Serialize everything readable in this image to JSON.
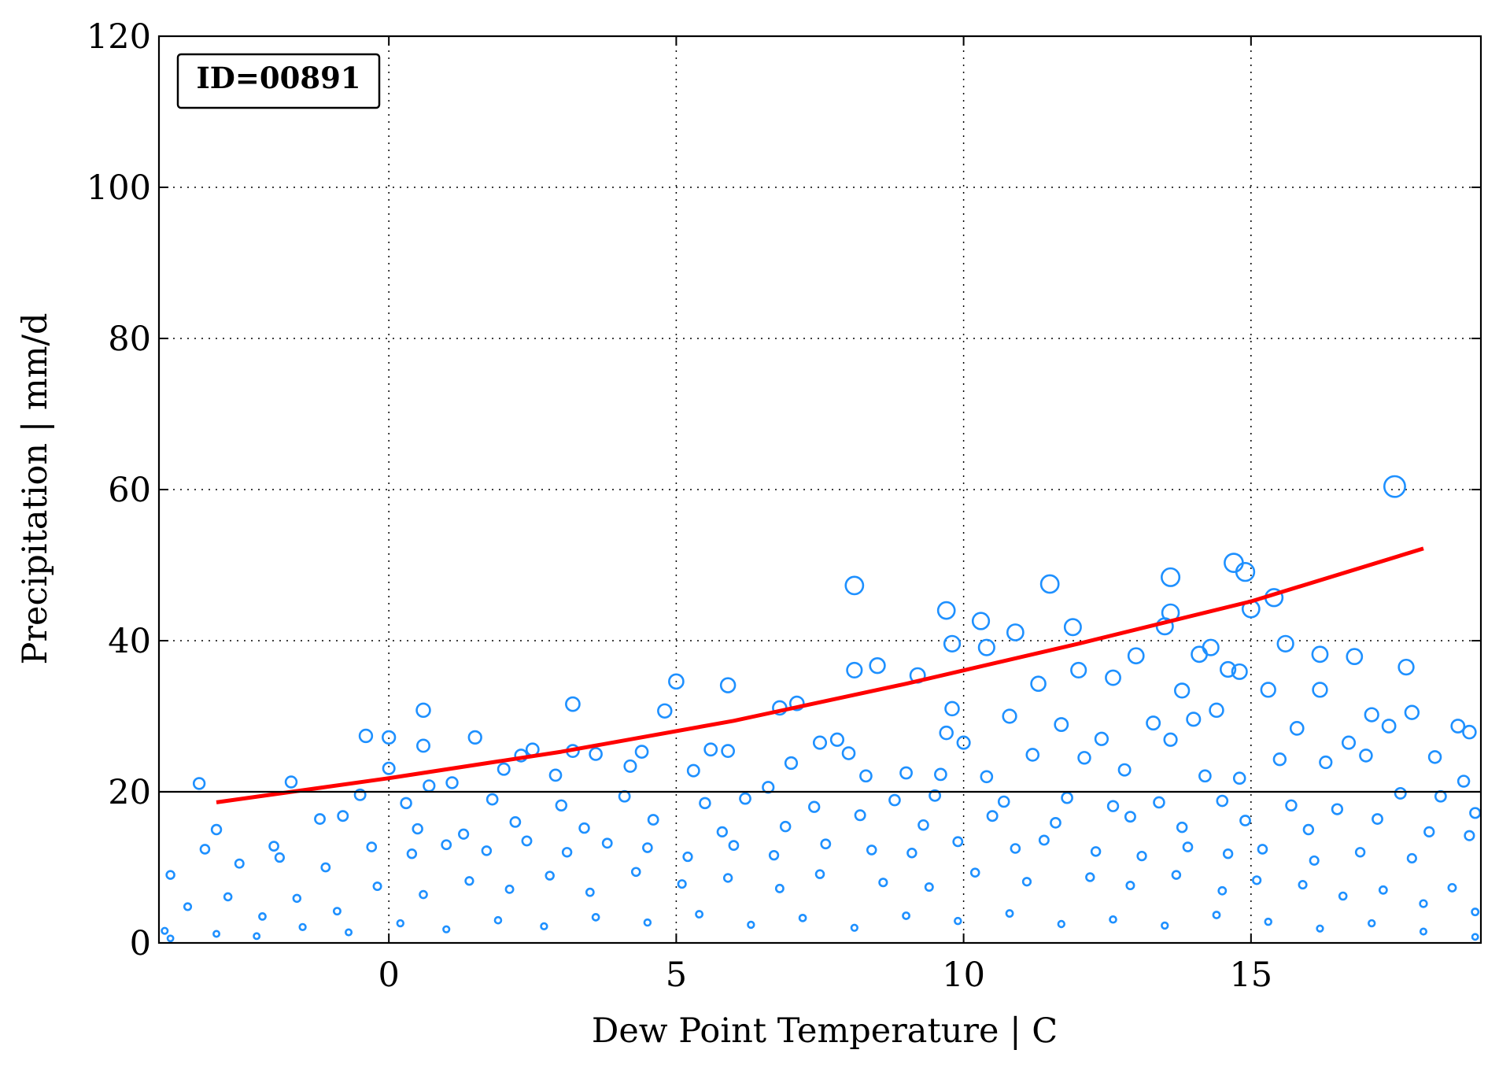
{
  "chart_data": {
    "type": "scatter",
    "title": "",
    "xlabel": "Dew Point Temperature | C",
    "ylabel": "Precipitation | mm/d",
    "xlim": [
      -4,
      19
    ],
    "ylim": [
      0,
      120
    ],
    "x_ticks": [
      0,
      5,
      10,
      15
    ],
    "y_ticks": [
      0,
      20,
      40,
      60,
      80,
      100,
      120
    ],
    "grid": true,
    "grid_style": "dotted",
    "annotation": "ID=00891",
    "annotation_position": "top-left",
    "threshold_line": {
      "y": 20,
      "color": "#000000"
    },
    "colors": {
      "points": "#1e90ff",
      "fit": "#ff0000"
    },
    "fit_curve": {
      "name": "",
      "x": [
        -3,
        0,
        3,
        6,
        9,
        12,
        15,
        18
      ],
      "y": [
        18.6,
        21.8,
        25.3,
        29.4,
        34.3,
        39.6,
        45.2,
        52.2
      ]
    },
    "series": [
      {
        "name": "",
        "marker": "open-circle",
        "points": [
          [
            17.5,
            60.4
          ],
          [
            8.1,
            47.3
          ],
          [
            11.5,
            47.5
          ],
          [
            14.7,
            50.3
          ],
          [
            14.9,
            49.1
          ],
          [
            13.6,
            48.4
          ],
          [
            15.4,
            45.7
          ],
          [
            9.7,
            44.0
          ],
          [
            10.3,
            42.6
          ],
          [
            13.6,
            43.7
          ],
          [
            15.0,
            44.2
          ],
          [
            11.9,
            41.8
          ],
          [
            10.9,
            41.1
          ],
          [
            13.5,
            41.9
          ],
          [
            10.4,
            39.1
          ],
          [
            9.8,
            39.6
          ],
          [
            15.6,
            39.6
          ],
          [
            16.2,
            38.2
          ],
          [
            16.8,
            37.9
          ],
          [
            17.7,
            36.5
          ],
          [
            14.1,
            38.2
          ],
          [
            14.3,
            39.1
          ],
          [
            13.0,
            38.0
          ],
          [
            8.5,
            36.7
          ],
          [
            8.1,
            36.1
          ],
          [
            12.0,
            36.1
          ],
          [
            14.6,
            36.2
          ],
          [
            14.8,
            35.9
          ],
          [
            7.1,
            31.7
          ],
          [
            5.0,
            34.6
          ],
          [
            5.9,
            34.1
          ],
          [
            9.2,
            35.4
          ],
          [
            3.2,
            31.6
          ],
          [
            0.6,
            30.8
          ],
          [
            4.8,
            30.7
          ],
          [
            6.8,
            31.1
          ],
          [
            9.8,
            31.0
          ],
          [
            11.3,
            34.3
          ],
          [
            12.6,
            35.1
          ],
          [
            13.8,
            33.4
          ],
          [
            15.3,
            33.5
          ],
          [
            16.2,
            33.5
          ],
          [
            0.0,
            27.2
          ],
          [
            -0.4,
            27.4
          ],
          [
            0.6,
            26.1
          ],
          [
            1.5,
            27.2
          ],
          [
            2.5,
            25.6
          ],
          [
            3.2,
            25.4
          ],
          [
            4.4,
            25.3
          ],
          [
            5.6,
            25.6
          ],
          [
            5.9,
            25.4
          ],
          [
            7.5,
            26.5
          ],
          [
            7.8,
            26.9
          ],
          [
            9.7,
            27.8
          ],
          [
            10.0,
            26.5
          ],
          [
            10.8,
            30.0
          ],
          [
            11.7,
            28.9
          ],
          [
            12.4,
            27.0
          ],
          [
            13.3,
            29.1
          ],
          [
            14.0,
            29.6
          ],
          [
            14.4,
            30.8
          ],
          [
            15.8,
            28.4
          ],
          [
            17.1,
            30.2
          ],
          [
            17.4,
            28.7
          ],
          [
            17.8,
            30.5
          ],
          [
            18.6,
            28.7
          ],
          [
            18.8,
            27.9
          ],
          [
            -3.3,
            21.1
          ],
          [
            -1.7,
            21.3
          ],
          [
            0.0,
            23.1
          ],
          [
            0.7,
            20.8
          ],
          [
            1.1,
            21.2
          ],
          [
            2.0,
            23.0
          ],
          [
            2.3,
            24.8
          ],
          [
            2.9,
            22.2
          ],
          [
            3.6,
            25.0
          ],
          [
            4.2,
            23.4
          ],
          [
            5.3,
            22.8
          ],
          [
            6.6,
            20.6
          ],
          [
            7.0,
            23.8
          ],
          [
            8.0,
            25.1
          ],
          [
            8.3,
            22.1
          ],
          [
            9.0,
            22.5
          ],
          [
            9.6,
            22.3
          ],
          [
            10.4,
            22.0
          ],
          [
            11.2,
            24.9
          ],
          [
            12.1,
            24.5
          ],
          [
            12.8,
            22.9
          ],
          [
            13.6,
            26.9
          ],
          [
            14.2,
            22.1
          ],
          [
            14.8,
            21.8
          ],
          [
            15.5,
            24.3
          ],
          [
            16.3,
            23.9
          ],
          [
            16.7,
            26.5
          ],
          [
            17.0,
            24.8
          ],
          [
            18.2,
            24.6
          ],
          [
            18.7,
            21.4
          ],
          [
            -0.5,
            19.6
          ],
          [
            0.3,
            18.5
          ],
          [
            1.8,
            19.0
          ],
          [
            3.0,
            18.2
          ],
          [
            4.1,
            19.4
          ],
          [
            5.5,
            18.5
          ],
          [
            6.2,
            19.1
          ],
          [
            7.4,
            18.0
          ],
          [
            8.8,
            18.9
          ],
          [
            9.5,
            19.5
          ],
          [
            10.7,
            18.7
          ],
          [
            11.8,
            19.2
          ],
          [
            12.6,
            18.1
          ],
          [
            13.4,
            18.6
          ],
          [
            14.5,
            18.8
          ],
          [
            15.7,
            18.2
          ],
          [
            16.5,
            17.7
          ],
          [
            17.6,
            19.8
          ],
          [
            18.3,
            19.4
          ],
          [
            18.9,
            17.2
          ],
          [
            -3.0,
            15.0
          ],
          [
            -2.0,
            12.8
          ],
          [
            -1.2,
            16.4
          ],
          [
            -0.8,
            16.8
          ],
          [
            0.5,
            15.1
          ],
          [
            1.3,
            14.4
          ],
          [
            2.2,
            16.0
          ],
          [
            3.4,
            15.2
          ],
          [
            4.6,
            16.3
          ],
          [
            5.8,
            14.7
          ],
          [
            6.9,
            15.4
          ],
          [
            8.2,
            16.9
          ],
          [
            9.3,
            15.6
          ],
          [
            10.5,
            16.8
          ],
          [
            11.6,
            15.9
          ],
          [
            12.9,
            16.7
          ],
          [
            13.8,
            15.3
          ],
          [
            14.9,
            16.2
          ],
          [
            16.0,
            15.0
          ],
          [
            17.2,
            16.4
          ],
          [
            18.1,
            14.7
          ],
          [
            18.8,
            14.2
          ],
          [
            -3.8,
            9.0
          ],
          [
            -3.2,
            12.4
          ],
          [
            -2.6,
            10.5
          ],
          [
            -1.9,
            11.3
          ],
          [
            -1.1,
            10.0
          ],
          [
            -0.3,
            12.7
          ],
          [
            0.4,
            11.8
          ],
          [
            1.0,
            13.0
          ],
          [
            1.7,
            12.2
          ],
          [
            2.4,
            13.5
          ],
          [
            3.1,
            12.0
          ],
          [
            3.8,
            13.2
          ],
          [
            4.5,
            12.6
          ],
          [
            5.2,
            11.4
          ],
          [
            6.0,
            12.9
          ],
          [
            6.7,
            11.6
          ],
          [
            7.6,
            13.1
          ],
          [
            8.4,
            12.3
          ],
          [
            9.1,
            11.9
          ],
          [
            9.9,
            13.4
          ],
          [
            10.9,
            12.5
          ],
          [
            11.4,
            13.6
          ],
          [
            12.3,
            12.1
          ],
          [
            13.1,
            11.5
          ],
          [
            13.9,
            12.7
          ],
          [
            14.6,
            11.8
          ],
          [
            15.2,
            12.4
          ],
          [
            16.1,
            10.9
          ],
          [
            16.9,
            12.0
          ],
          [
            17.8,
            11.2
          ],
          [
            18.5,
            7.3
          ],
          [
            -3.9,
            1.6
          ],
          [
            -3.5,
            4.8
          ],
          [
            -2.8,
            6.1
          ],
          [
            -2.2,
            3.5
          ],
          [
            -1.6,
            5.9
          ],
          [
            -0.9,
            4.2
          ],
          [
            -0.2,
            7.5
          ],
          [
            0.6,
            6.4
          ],
          [
            1.4,
            8.2
          ],
          [
            2.1,
            7.1
          ],
          [
            2.8,
            8.9
          ],
          [
            3.5,
            6.7
          ],
          [
            4.3,
            9.4
          ],
          [
            5.1,
            7.8
          ],
          [
            5.9,
            8.6
          ],
          [
            6.8,
            7.2
          ],
          [
            7.5,
            9.1
          ],
          [
            8.6,
            8.0
          ],
          [
            9.4,
            7.4
          ],
          [
            10.2,
            9.3
          ],
          [
            11.1,
            8.1
          ],
          [
            12.2,
            8.7
          ],
          [
            12.9,
            7.6
          ],
          [
            13.7,
            9.0
          ],
          [
            14.5,
            6.9
          ],
          [
            15.1,
            8.3
          ],
          [
            15.9,
            7.7
          ],
          [
            16.6,
            6.2
          ],
          [
            17.3,
            7.0
          ],
          [
            18.0,
            5.2
          ],
          [
            18.9,
            4.1
          ],
          [
            -3.8,
            0.6
          ],
          [
            -3.0,
            1.2
          ],
          [
            -2.3,
            0.9
          ],
          [
            -1.5,
            2.1
          ],
          [
            -0.7,
            1.4
          ],
          [
            0.2,
            2.6
          ],
          [
            1.0,
            1.8
          ],
          [
            1.9,
            3.0
          ],
          [
            2.7,
            2.2
          ],
          [
            3.6,
            3.4
          ],
          [
            4.5,
            2.7
          ],
          [
            5.4,
            3.8
          ],
          [
            6.3,
            2.4
          ],
          [
            7.2,
            3.3
          ],
          [
            8.1,
            2.0
          ],
          [
            9.0,
            3.6
          ],
          [
            9.9,
            2.9
          ],
          [
            10.8,
            3.9
          ],
          [
            11.7,
            2.5
          ],
          [
            12.6,
            3.1
          ],
          [
            13.5,
            2.3
          ],
          [
            14.4,
            3.7
          ],
          [
            15.3,
            2.8
          ],
          [
            16.2,
            1.9
          ],
          [
            17.1,
            2.6
          ],
          [
            18.0,
            1.5
          ],
          [
            18.9,
            0.8
          ]
        ]
      }
    ]
  }
}
